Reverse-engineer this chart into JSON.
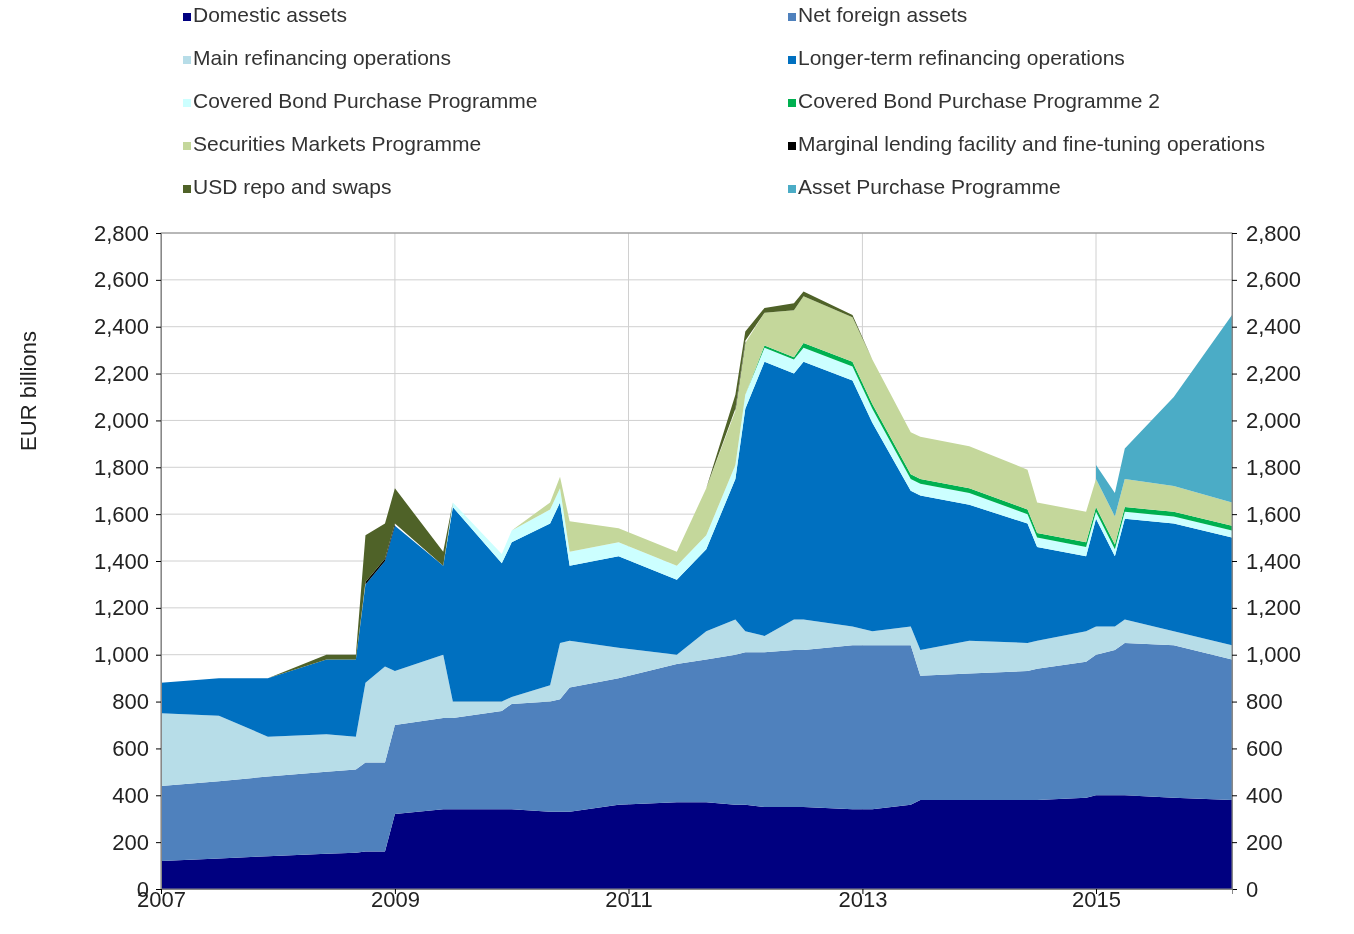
{
  "chart_data": {
    "type": "area",
    "stacked": true,
    "ylabel": "EUR billions",
    "x": [
      "2007-01",
      "2007-07",
      "2007-12",
      "2008-06",
      "2008-09",
      "2008-10",
      "2008-12",
      "2009-01",
      "2009-06",
      "2009-07",
      "2009-12",
      "2010-01",
      "2010-05",
      "2010-06",
      "2010-07",
      "2010-12",
      "2011-06",
      "2011-09",
      "2011-12",
      "2012-01",
      "2012-03",
      "2012-06",
      "2012-07",
      "2012-12",
      "2013-02",
      "2013-06",
      "2013-07",
      "2013-12",
      "2014-06",
      "2014-07",
      "2014-12",
      "2015-01",
      "2015-03",
      "2015-04",
      "2015-09",
      "2016-03"
    ],
    "series": [
      {
        "name": "Domestic assets",
        "color": "#000080",
        "values": [
          120,
          130,
          140,
          150,
          155,
          160,
          160,
          320,
          340,
          340,
          340,
          340,
          330,
          330,
          330,
          360,
          370,
          370,
          360,
          360,
          350,
          350,
          350,
          340,
          340,
          360,
          380,
          380,
          380,
          380,
          390,
          400,
          400,
          400,
          390,
          380
        ]
      },
      {
        "name": "Net foreign assets",
        "color": "#4f81bd",
        "values": [
          320,
          330,
          340,
          350,
          355,
          380,
          380,
          380,
          390,
          390,
          420,
          450,
          470,
          480,
          530,
          540,
          590,
          610,
          640,
          650,
          660,
          670,
          670,
          700,
          700,
          680,
          530,
          540,
          550,
          560,
          580,
          600,
          620,
          650,
          650,
          600
        ]
      },
      {
        "name": "Main refinancing operations",
        "color": "#b7dde8",
        "values": [
          310,
          280,
          170,
          160,
          140,
          340,
          410,
          230,
          270,
          70,
          40,
          30,
          70,
          240,
          200,
          130,
          40,
          120,
          150,
          90,
          70,
          130,
          130,
          80,
          60,
          80,
          110,
          140,
          120,
          120,
          130,
          120,
          100,
          100,
          60,
          60
        ]
      },
      {
        "name": "Longer-term refinancing operations",
        "color": "#0070c0",
        "values": [
          130,
          160,
          250,
          320,
          330,
          420,
          450,
          620,
          380,
          830,
          590,
          660,
          690,
          600,
          320,
          390,
          320,
          350,
          600,
          950,
          1170,
          1050,
          1100,
          1050,
          890,
          580,
          660,
          580,
          510,
          400,
          320,
          460,
          300,
          430,
          460,
          460
        ]
      },
      {
        "name": "Covered Bond Purchase Programme",
        "color": "#ccffff",
        "values": [
          0,
          0,
          0,
          0,
          0,
          0,
          0,
          0,
          0,
          20,
          40,
          50,
          60,
          60,
          60,
          60,
          60,
          60,
          60,
          60,
          60,
          60,
          60,
          60,
          60,
          50,
          50,
          50,
          40,
          40,
          40,
          30,
          30,
          30,
          30,
          30
        ]
      },
      {
        "name": "Covered Bond Purchase Programme 2",
        "color": "#00b050",
        "values": [
          0,
          0,
          0,
          0,
          0,
          0,
          0,
          0,
          0,
          0,
          0,
          0,
          0,
          0,
          0,
          0,
          0,
          0,
          0,
          0,
          10,
          10,
          20,
          20,
          20,
          20,
          20,
          20,
          20,
          20,
          20,
          20,
          20,
          20,
          20,
          20
        ]
      },
      {
        "name": "Securities Markets Programme",
        "color": "#c4d79b",
        "values": [
          0,
          0,
          0,
          0,
          0,
          0,
          0,
          0,
          0,
          0,
          0,
          0,
          30,
          50,
          130,
          60,
          60,
          200,
          230,
          220,
          140,
          200,
          200,
          190,
          190,
          180,
          180,
          180,
          170,
          130,
          130,
          120,
          120,
          120,
          110,
          100
        ]
      },
      {
        "name": "Marginal lending facility and fine-tuning operations",
        "color": "#000000",
        "values": [
          null,
          null,
          null,
          null,
          null,
          10,
          10,
          10,
          null,
          null,
          null,
          null,
          null,
          null,
          null,
          null,
          null,
          null,
          10,
          10,
          null,
          null,
          null,
          null,
          null,
          null,
          null,
          null,
          null,
          null,
          null,
          null,
          null,
          null,
          null,
          null
        ]
      },
      {
        "name": "USD repo and swaps",
        "color": "#4f6228",
        "values": [
          0,
          0,
          0,
          20,
          20,
          200,
          150,
          150,
          60,
          0,
          0,
          0,
          0,
          0,
          0,
          0,
          0,
          0,
          60,
          40,
          20,
          30,
          20,
          10,
          0,
          0,
          0,
          0,
          0,
          0,
          0,
          0,
          0,
          0,
          0,
          0
        ]
      },
      {
        "name": "Asset Purchase Programme",
        "color": "#4bacc6",
        "values": [
          null,
          null,
          null,
          null,
          null,
          null,
          null,
          null,
          null,
          null,
          null,
          null,
          null,
          null,
          null,
          null,
          null,
          null,
          null,
          null,
          null,
          null,
          null,
          null,
          null,
          null,
          null,
          null,
          null,
          null,
          null,
          60,
          100,
          130,
          380,
          800
        ]
      }
    ],
    "xlim": [
      "2007-01",
      "2016-03"
    ],
    "xticks": [
      "2007",
      "2009",
      "2011",
      "2013",
      "2015"
    ],
    "ylim": [
      0,
      2800
    ],
    "yticks": [
      0,
      {
        "value": 200,
        "label": "200"
      },
      400,
      600,
      800,
      {
        "value": 1000,
        "label": "1,000"
      },
      {
        "value": 1200,
        "label": "1,200"
      },
      {
        "value": 1400,
        "label": "1,400"
      },
      {
        "value": 1600,
        "label": "1,600"
      },
      {
        "value": 1800,
        "label": "1,800"
      },
      {
        "value": 2000,
        "label": "2,000"
      },
      {
        "value": 2200,
        "label": "2,200"
      },
      {
        "value": 2400,
        "label": "2,400"
      },
      {
        "value": 2600,
        "label": "2,600"
      },
      {
        "value": 2800,
        "label": "2,800"
      }
    ],
    "y2lim": [
      0,
      2800
    ],
    "y2ticks": [
      0,
      200,
      400,
      600,
      800,
      {
        "value": 1000,
        "label": "1,000"
      },
      {
        "value": 1200,
        "label": "1,200"
      },
      {
        "value": 1400,
        "label": "1,400"
      },
      {
        "value": 1600,
        "label": "1,600"
      },
      {
        "value": 1800,
        "label": "1,800"
      },
      {
        "value": 2000,
        "label": "2,000"
      },
      {
        "value": 2200,
        "label": "2,200"
      },
      {
        "value": 2400,
        "label": "2,400"
      },
      {
        "value": 2600,
        "label": "2,600"
      },
      {
        "value": 2800,
        "label": "2,800"
      }
    ],
    "grid": true,
    "legend": "top"
  }
}
